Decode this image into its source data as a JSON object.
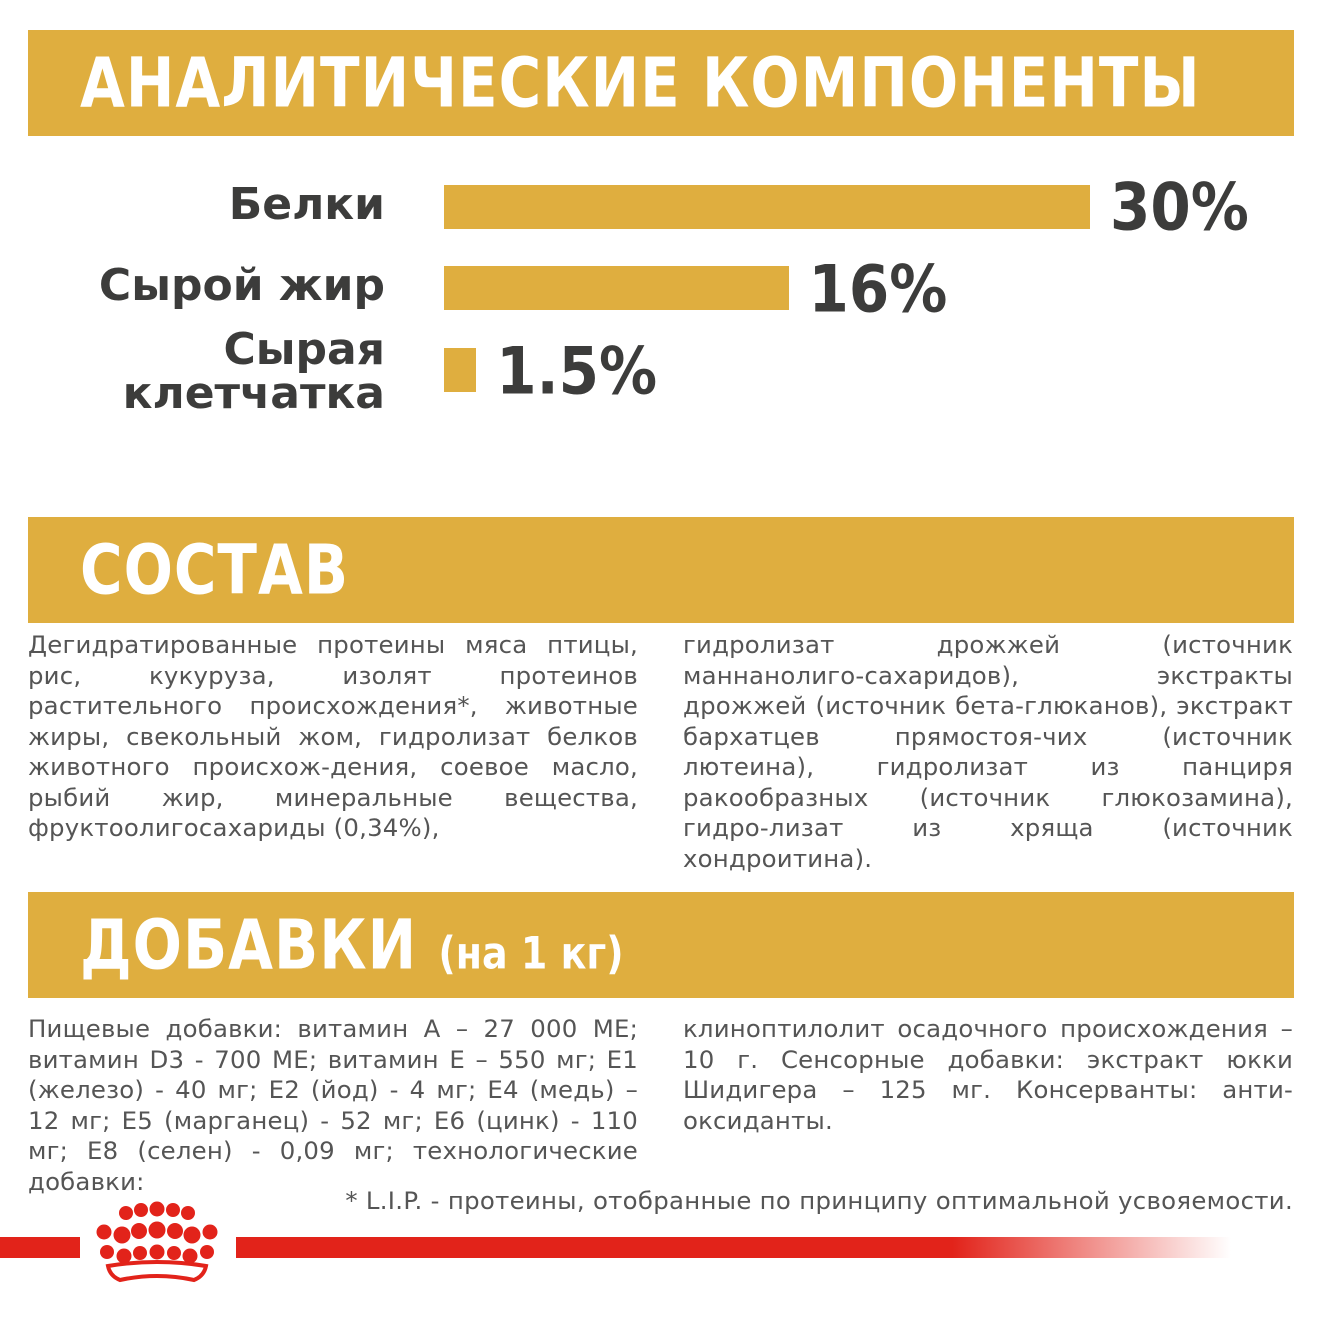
{
  "sections": {
    "analytical": {
      "title": "АНАЛИТИЧЕСКИЕ КОМПОНЕНТЫ"
    },
    "composition": {
      "title": "СОСТАВ"
    },
    "additives": {
      "title": "ДОБАВКИ",
      "title_suffix": "(на 1 кг)"
    }
  },
  "nutrients": [
    {
      "label": "Белки",
      "value_text": "30%",
      "percent": 30
    },
    {
      "label": "Сырой жир",
      "value_text": "16%",
      "percent": 16
    },
    {
      "label_line1": "Сырая",
      "label_line2": "клетчатка",
      "value_text": "1.5%",
      "percent": 1.5
    }
  ],
  "composition_text": {
    "left": "Дегидратированные протеины мяса птицы, рис, кукуруза, изолят протеинов растительного происхождения*, животные жиры, свекольный жом, гидролизат белков животного происхож-дения, соевое масло, рыбий жир, минеральные вещества, фруктоолигосахариды (0,34%),",
    "right": "гидролизат дрожжей (источник маннанолиго-сахаридов), экстракты дрожжей (источник бета-глюканов), экстракт бархатцев прямостоя-чих (источник лютеина), гидролизат из панциря ракообразных (источник глюкозамина), гидро-лизат из хряща (источник хондроитина)."
  },
  "additives_text": {
    "left": "Пищевые добавки: витамин А – 27 000 МЕ; витамин D3 - 700 МЕ; витамин Е – 550 мг; Е1 (железо) - 40 мг; Е2 (йод) - 4 мг; Е4 (медь) – 12 мг; Е5 (марганец) - 52 мг; Е6 (цинк) - 110 мг; Е8 (селен) - 0,09 мг; технологические добавки:",
    "right": "клиноптилолит осадочного происхождения – 10 г. Сенсорные добавки: экстракт юкки Шидигера – 125 мг. Консерванты: анти-оксиданты."
  },
  "footnote": "* L.I.P. - протеины, отобранные по принципу оптимальной усвояемости.",
  "logo": {
    "icon": "crown-logo-icon",
    "color": "#e2231a"
  },
  "colors": {
    "accent": "#dfae3f",
    "text_dark": "#3c3c3b",
    "text_body": "#555555",
    "brand_red": "#e2231a"
  }
}
